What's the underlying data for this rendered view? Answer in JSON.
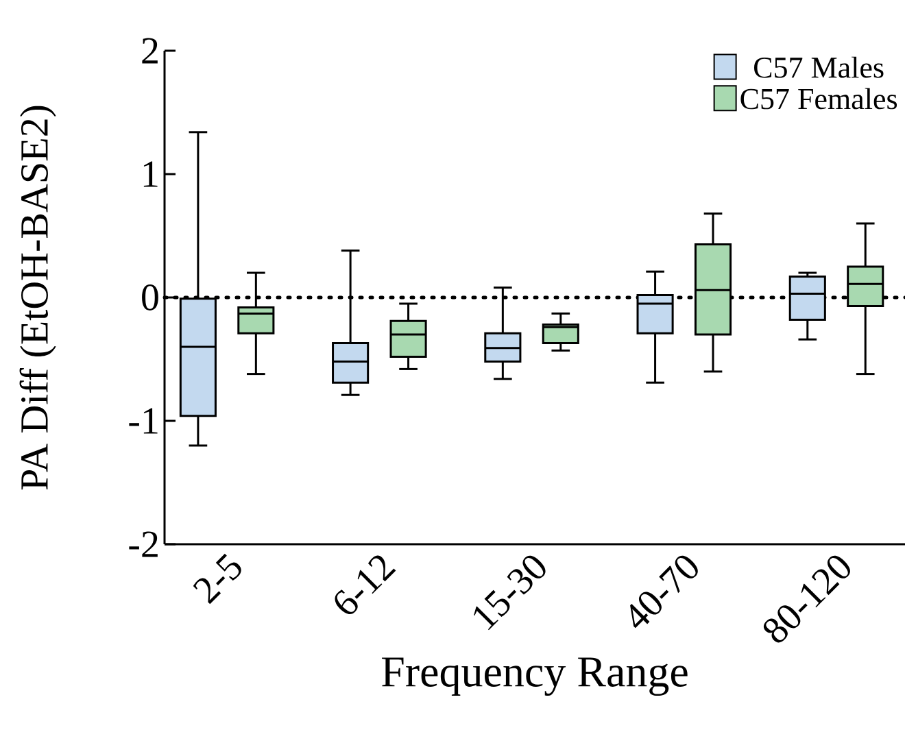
{
  "chart_data": {
    "type": "box",
    "xlabel": "Frequency Range",
    "ylabel": "PA Diff (EtOH-BASE2)",
    "categories": [
      "2-5",
      "6-12",
      "15-30",
      "40-70",
      "80-120"
    ],
    "series": [
      {
        "name": "C57 Males",
        "color": "#c3d9ef",
        "boxes": [
          {
            "low": -1.2,
            "q1": -0.96,
            "median": -0.4,
            "q3": -0.01,
            "high": 1.34
          },
          {
            "low": -0.79,
            "q1": -0.69,
            "median": -0.52,
            "q3": -0.37,
            "high": 0.38
          },
          {
            "low": -0.66,
            "q1": -0.52,
            "median": -0.41,
            "q3": -0.29,
            "high": 0.08
          },
          {
            "low": -0.69,
            "q1": -0.29,
            "median": -0.05,
            "q3": 0.02,
            "high": 0.21
          },
          {
            "low": -0.34,
            "q1": -0.18,
            "median": 0.03,
            "q3": 0.17,
            "high": 0.2
          }
        ]
      },
      {
        "name": "C57 Females",
        "color": "#a8d9b0",
        "boxes": [
          {
            "low": -0.62,
            "q1": -0.29,
            "median": -0.13,
            "q3": -0.08,
            "high": 0.2
          },
          {
            "low": -0.58,
            "q1": -0.48,
            "median": -0.3,
            "q3": -0.19,
            "high": -0.05
          },
          {
            "low": -0.43,
            "q1": -0.37,
            "median": -0.24,
            "q3": -0.22,
            "high": -0.13
          },
          {
            "low": -0.6,
            "q1": -0.3,
            "median": 0.06,
            "q3": 0.43,
            "high": 0.68
          },
          {
            "low": -0.62,
            "q1": -0.07,
            "median": 0.11,
            "q3": 0.25,
            "high": 0.6
          }
        ]
      }
    ],
    "ylim": [
      -2,
      2
    ],
    "yticks": [
      -2,
      -1,
      0,
      1,
      2
    ],
    "ref_lines": [
      {
        "axis": "y",
        "value": 0,
        "line_style": "dotted"
      }
    ],
    "legend": "top right",
    "grid": false
  }
}
